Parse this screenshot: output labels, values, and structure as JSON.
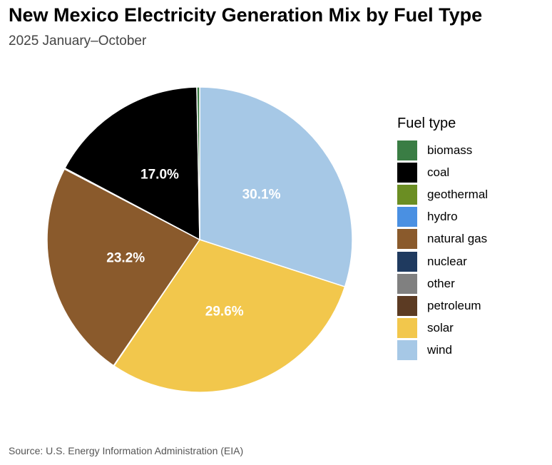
{
  "title": "New Mexico Electricity Generation Mix by Fuel Type",
  "subtitle": "2025 January–October",
  "caption": "Source: U.S. Energy Information Administration (EIA)",
  "chart_data": {
    "type": "pie",
    "title": "New Mexico Electricity Generation Mix by Fuel Type",
    "subtitle": "2025 January–October",
    "legend_title": "Fuel type",
    "legend_position": "right",
    "start_angle": "12 o'clock",
    "direction": "clockwise",
    "slices": [
      {
        "name": "wind",
        "value": 30.1,
        "label": "30.1%",
        "color": "#a6c8e6"
      },
      {
        "name": "solar",
        "value": 29.6,
        "label": "29.6%",
        "color": "#f2c74c"
      },
      {
        "name": "petroleum",
        "value": 0.05,
        "label": "",
        "color": "#5c3b23"
      },
      {
        "name": "natural gas",
        "value": 23.2,
        "label": "23.2%",
        "color": "#8a5a2c"
      },
      {
        "name": "hydro",
        "value": 0.05,
        "label": "",
        "color": "#4a90e2"
      },
      {
        "name": "geothermal",
        "value": 0.05,
        "label": "",
        "color": "#6b8e23"
      },
      {
        "name": "coal",
        "value": 17.0,
        "label": "17.0%",
        "color": "#000000"
      },
      {
        "name": "biomass",
        "value": 0.3,
        "label": "",
        "color": "#3a7d44"
      }
    ],
    "legend": [
      {
        "name": "biomass",
        "color": "#3a7d44"
      },
      {
        "name": "coal",
        "color": "#000000"
      },
      {
        "name": "geothermal",
        "color": "#6b8e23"
      },
      {
        "name": "hydro",
        "color": "#4a90e2"
      },
      {
        "name": "natural gas",
        "color": "#8a5a2c"
      },
      {
        "name": "nuclear",
        "color": "#1f3a5f"
      },
      {
        "name": "other",
        "color": "#808080"
      },
      {
        "name": "petroleum",
        "color": "#5c3b23"
      },
      {
        "name": "solar",
        "color": "#f2c74c"
      },
      {
        "name": "wind",
        "color": "#a6c8e6"
      }
    ]
  }
}
